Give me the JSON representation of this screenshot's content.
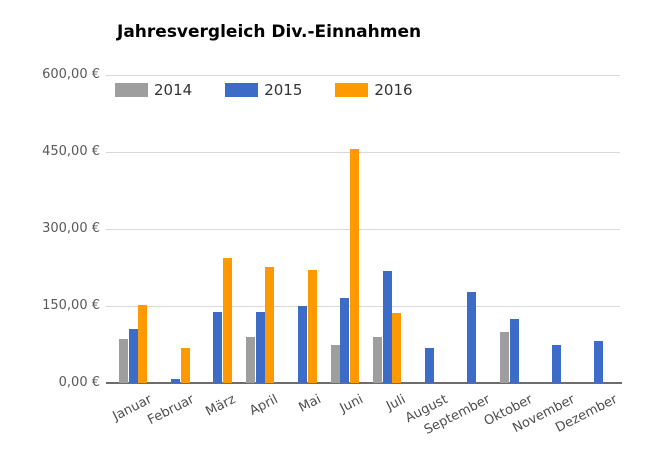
{
  "chart_data": {
    "type": "bar",
    "title": "Jahresvergleich Div.-Einnahmen",
    "categories": [
      "Januar",
      "Februar",
      "März",
      "April",
      "Mai",
      "Juni",
      "Juli",
      "August",
      "September",
      "Oktober",
      "November",
      "Dezember"
    ],
    "series": [
      {
        "name": "2014",
        "color": "#9e9e9e",
        "values": [
          85,
          0,
          0,
          90,
          0,
          75,
          90,
          0,
          0,
          100,
          0,
          0
        ]
      },
      {
        "name": "2015",
        "color": "#3c6cc8",
        "values": [
          105,
          8,
          138,
          138,
          150,
          166,
          219,
          68,
          177,
          125,
          75,
          82
        ]
      },
      {
        "name": "2016",
        "color": "#ff9900",
        "values": [
          152,
          68,
          243,
          226,
          220,
          455,
          137,
          0,
          0,
          0,
          0,
          0
        ]
      }
    ],
    "ylabel": "",
    "xlabel": "",
    "ylim": [
      0,
      600
    ],
    "y_ticks": [
      {
        "value": 600,
        "label": "600,00 €"
      },
      {
        "value": 450,
        "label": "450,00 €"
      },
      {
        "value": 300,
        "label": "300,00 €"
      },
      {
        "value": 150,
        "label": "150,00 €"
      },
      {
        "value": 0,
        "label": "0,00 €"
      }
    ],
    "grid": true,
    "legend_position": "top-left-inside"
  },
  "colors": {
    "gridline": "#d9d9d9",
    "baseline": "#6d6d6d",
    "axis_text": "#595959",
    "title_text": "#000000",
    "background": "#ffffff"
  }
}
